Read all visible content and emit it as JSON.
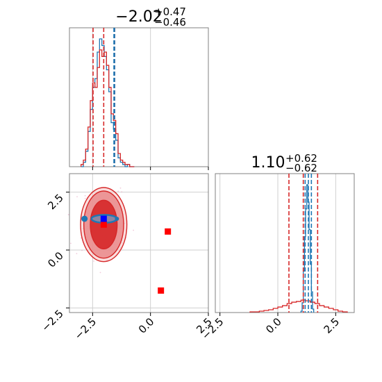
{
  "chart_data": {
    "type": "corner",
    "parameters": [
      "p0",
      "p1"
    ],
    "colors": {
      "red": "#d62728",
      "blue": "#1f77b4",
      "marker": "#0000ff",
      "grid": "#cfcfcf",
      "axis": "#808080"
    },
    "axes_limits": {
      "p0": [
        -3.5,
        2.5
      ],
      "p1": [
        -2.7,
        3.3
      ]
    },
    "marginal_p0": {
      "title": {
        "main": "−2.02",
        "plus": "+0.47",
        "minus": "−0.46"
      },
      "x_ticks": [
        -2.5,
        0.0,
        2.5
      ],
      "x_tick_labels": [
        "−2.5",
        "0.0",
        "2.5"
      ],
      "quantiles_red": [
        -2.48,
        -2.02,
        -1.55
      ],
      "quantiles_blue": [
        -1.58,
        -1.55
      ],
      "hist_red": {
        "edges": [
          -3.0,
          -2.9,
          -2.8,
          -2.7,
          -2.6,
          -2.5,
          -2.4,
          -2.3,
          -2.2,
          -2.1,
          -2.0,
          -1.9,
          -1.8,
          -1.7,
          -1.6,
          -1.5,
          -1.4,
          -1.3,
          -1.2,
          -1.1,
          -1.0,
          -0.9,
          -0.8,
          -0.7
        ],
        "counts": [
          1,
          3,
          8,
          18,
          30,
          38,
          36,
          45,
          53,
          50,
          52,
          46,
          36,
          24,
          21,
          15,
          6,
          3,
          2,
          1,
          1,
          0,
          0
        ]
      },
      "hist_blue": {
        "edges": [
          -3.0,
          -2.9,
          -2.8,
          -2.7,
          -2.6,
          -2.5,
          -2.4,
          -2.3,
          -2.2,
          -2.1,
          -2.0,
          -1.9,
          -1.8,
          -1.7,
          -1.6,
          -1.5,
          -1.4,
          -1.3,
          -1.2,
          -1.1,
          -1.0,
          -0.9,
          -0.8,
          -0.7
        ],
        "counts": [
          0,
          2,
          7,
          16,
          26,
          36,
          40,
          52,
          58,
          55,
          50,
          44,
          34,
          20,
          17,
          12,
          4,
          2,
          1,
          0,
          1,
          0,
          0
        ]
      }
    },
    "marginal_p1": {
      "title": {
        "main": "1.10",
        "plus": "+0.62",
        "minus": "−0.62"
      },
      "x_ticks": [
        -2.5,
        0.0,
        2.5
      ],
      "x_tick_labels": [
        "−2.5",
        "0.0",
        "2.5"
      ],
      "quantiles_red": [
        0.48,
        1.1,
        1.72
      ],
      "quantiles_blue": [
        1.18,
        1.32,
        1.45
      ],
      "hist_red": {
        "edges": [
          -1.2,
          -1.0,
          -0.8,
          -0.6,
          -0.4,
          -0.2,
          0.0,
          0.2,
          0.4,
          0.6,
          0.8,
          1.0,
          1.2,
          1.4,
          1.6,
          1.8,
          2.0,
          2.2,
          2.4,
          2.6,
          2.8,
          3.0
        ],
        "counts": [
          1,
          1,
          2,
          3,
          4,
          6,
          8,
          10,
          13,
          15,
          16,
          18,
          17,
          15,
          13,
          10,
          8,
          6,
          4,
          2,
          1
        ]
      },
      "hist_blue": {
        "edges": [
          1.0,
          1.05,
          1.1,
          1.15,
          1.2,
          1.25,
          1.3,
          1.35,
          1.4,
          1.45,
          1.5,
          1.55
        ],
        "counts": [
          2,
          14,
          60,
          110,
          150,
          185,
          160,
          120,
          70,
          30,
          5
        ]
      }
    },
    "joint": {
      "x_ticks": [
        -2.5,
        0.0,
        2.5
      ],
      "x_tick_labels": [
        "−2.5",
        "0.0",
        "2.5"
      ],
      "y_ticks": [
        -2.5,
        0.0,
        2.5
      ],
      "y_tick_labels": [
        "−2.5",
        "0.0",
        "2.5"
      ],
      "red_contours": [
        {
          "rx": 1.0,
          "ry": 1.6,
          "fill": "#f5c2c2",
          "opacity": 0.55
        },
        {
          "rx": 0.86,
          "ry": 1.45,
          "fill": "#e98a8b",
          "opacity": 0.85
        },
        {
          "rx": 0.58,
          "ry": 1.05,
          "fill": "#d62728",
          "opacity": 0.9
        }
      ],
      "red_center": [
        -2.02,
        1.1
      ],
      "blue_center": [
        -2.0,
        1.35
      ],
      "blue_markers": [
        [
          -2.02,
          1.35
        ]
      ],
      "red_markers": [
        [
          0.75,
          0.8
        ],
        [
          0.45,
          -1.75
        ],
        [
          -2.02,
          1.1
        ]
      ]
    }
  }
}
